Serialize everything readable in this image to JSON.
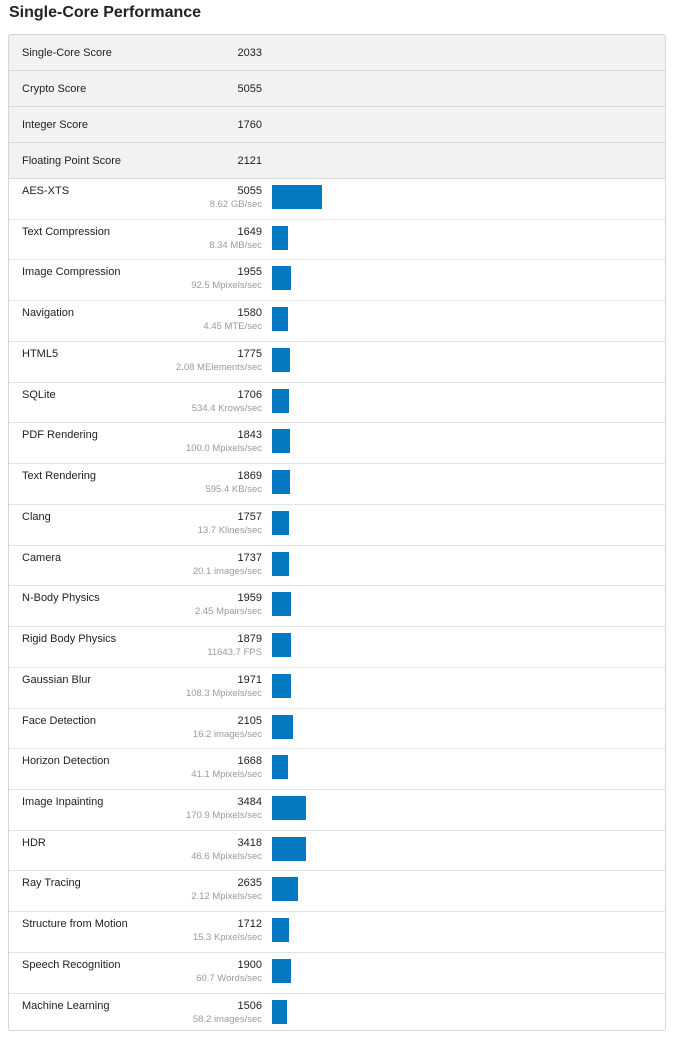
{
  "page": {
    "title": "Single-Core Performance"
  },
  "colors": {
    "bar": "#0479c1",
    "header_row_bg": "#f2f2f2"
  },
  "bar_scale_max": 5055,
  "summary": [
    {
      "label": "Single-Core Score",
      "value": "2033"
    },
    {
      "label": "Crypto Score",
      "value": "5055"
    },
    {
      "label": "Integer Score",
      "value": "1760"
    },
    {
      "label": "Floating Point Score",
      "value": "2121"
    }
  ],
  "benchmarks": [
    {
      "label": "AES-XTS",
      "score": "5055",
      "desc": "8.62 GB/sec",
      "value": 5055
    },
    {
      "label": "Text Compression",
      "score": "1649",
      "desc": "8.34 MB/sec",
      "value": 1649
    },
    {
      "label": "Image Compression",
      "score": "1955",
      "desc": "92.5 Mpixels/sec",
      "value": 1955
    },
    {
      "label": "Navigation",
      "score": "1580",
      "desc": "4.45 MTE/sec",
      "value": 1580
    },
    {
      "label": "HTML5",
      "score": "1775",
      "desc": "2.08 MElements/sec",
      "value": 1775
    },
    {
      "label": "SQLite",
      "score": "1706",
      "desc": "534.4 Krows/sec",
      "value": 1706
    },
    {
      "label": "PDF Rendering",
      "score": "1843",
      "desc": "100.0 Mpixels/sec",
      "value": 1843
    },
    {
      "label": "Text Rendering",
      "score": "1869",
      "desc": "595.4 KB/sec",
      "value": 1869
    },
    {
      "label": "Clang",
      "score": "1757",
      "desc": "13.7 Klines/sec",
      "value": 1757
    },
    {
      "label": "Camera",
      "score": "1737",
      "desc": "20.1 images/sec",
      "value": 1737
    },
    {
      "label": "N-Body Physics",
      "score": "1959",
      "desc": "2.45 Mpairs/sec",
      "value": 1959
    },
    {
      "label": "Rigid Body Physics",
      "score": "1879",
      "desc": "11643.7 FPS",
      "value": 1879
    },
    {
      "label": "Gaussian Blur",
      "score": "1971",
      "desc": "108.3 Mpixels/sec",
      "value": 1971
    },
    {
      "label": "Face Detection",
      "score": "2105",
      "desc": "16.2 images/sec",
      "value": 2105
    },
    {
      "label": "Horizon Detection",
      "score": "1668",
      "desc": "41.1 Mpixels/sec",
      "value": 1668
    },
    {
      "label": "Image Inpainting",
      "score": "3484",
      "desc": "170.9 Mpixels/sec",
      "value": 3484
    },
    {
      "label": "HDR",
      "score": "3418",
      "desc": "46.6 Mpixels/sec",
      "value": 3418
    },
    {
      "label": "Ray Tracing",
      "score": "2635",
      "desc": "2.12 Mpixels/sec",
      "value": 2635
    },
    {
      "label": "Structure from Motion",
      "score": "1712",
      "desc": "15.3 Kpixels/sec",
      "value": 1712
    },
    {
      "label": "Speech Recognition",
      "score": "1900",
      "desc": "60.7 Words/sec",
      "value": 1900
    },
    {
      "label": "Machine Learning",
      "score": "1506",
      "desc": "58.2 images/sec",
      "value": 1506
    }
  ]
}
